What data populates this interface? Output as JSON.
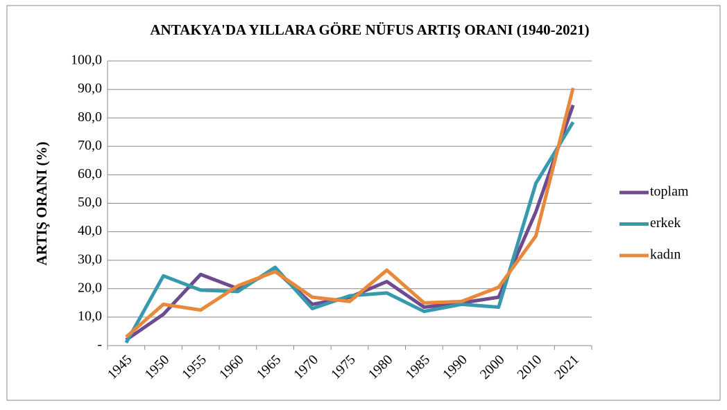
{
  "chart_data": {
    "type": "line",
    "title": "ANTAKYA'DA YILLARA GÖRE NÜFUS ARTIŞ ORANI (1940-2021)",
    "y_label": "ARTIŞ ORANI (%)",
    "categories": [
      "1945",
      "1950",
      "1955",
      "1960",
      "1965",
      "1970",
      "1975",
      "1980",
      "1985",
      "1990",
      "2000",
      "2010",
      "2021"
    ],
    "series": [
      {
        "name": "toplam",
        "color": "#6e4a8e",
        "values": [
          2.0,
          11.0,
          25.0,
          20.0,
          26.5,
          14.5,
          17.0,
          22.5,
          13.5,
          15.0,
          17.0,
          47.0,
          84.5
        ]
      },
      {
        "name": "erkek",
        "color": "#3799ad",
        "values": [
          1.0,
          24.5,
          19.5,
          19.0,
          27.5,
          13.0,
          17.5,
          18.5,
          12.0,
          14.5,
          13.5,
          57.0,
          78.5
        ]
      },
      {
        "name": "kadın",
        "color": "#e8883a",
        "values": [
          3.0,
          14.5,
          12.5,
          21.0,
          26.0,
          17.0,
          15.5,
          26.5,
          15.0,
          15.5,
          20.5,
          38.5,
          90.5
        ]
      }
    ],
    "ylim": [
      0,
      100
    ],
    "yticks": [
      {
        "value": 0,
        "label": "-"
      },
      {
        "value": 10,
        "label": "10,0"
      },
      {
        "value": 20,
        "label": "20,0"
      },
      {
        "value": 30,
        "label": "30,0"
      },
      {
        "value": 40,
        "label": "40,0"
      },
      {
        "value": 50,
        "label": "50,0"
      },
      {
        "value": 60,
        "label": "60,0"
      },
      {
        "value": 70,
        "label": "70,0"
      },
      {
        "value": 80,
        "label": "80,0"
      },
      {
        "value": 90,
        "label": "90,0"
      },
      {
        "value": 100,
        "label": "100,0"
      }
    ],
    "grid": true,
    "legend": "right"
  }
}
